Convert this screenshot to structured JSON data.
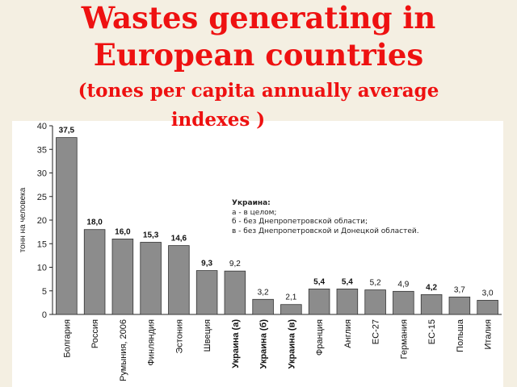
{
  "title": {
    "line1": "Wastes generating in",
    "line2": "European   countries",
    "line3": "(tones per capita annually  average",
    "line4": "indexes )"
  },
  "legend": {
    "title": "Украина:",
    "items": [
      "а - в целом;",
      "б - без Днепропетровской области;",
      "в - без Днепропетровской и Донецкой областей."
    ]
  },
  "colors": {
    "bar": "#8c8c8c",
    "title": "#ee1111",
    "panel": "#ffffff",
    "background": "#f4efe2"
  },
  "chart_data": {
    "type": "bar",
    "title": "",
    "xlabel": "",
    "ylabel": "тонн на человека",
    "ylim": [
      0,
      40
    ],
    "yticks": [
      "0",
      "5",
      "10",
      "15",
      "20",
      "25",
      "30",
      "35",
      "40"
    ],
    "grid": false,
    "categories": [
      "Болгария",
      "Россия",
      "Румыния, 2006",
      "Финляндия",
      "Эстония",
      "Швеция",
      "Украина (а)",
      "Украина (б)",
      "Украина (в)",
      "Франция",
      "Англия",
      "ЕС-27",
      "Германия",
      "ЕС-15",
      "Польша",
      "Италия"
    ],
    "values": [
      37.5,
      18.0,
      16.0,
      15.3,
      14.6,
      9.3,
      9.2,
      3.2,
      2.1,
      5.4,
      5.4,
      5.2,
      4.9,
      4.2,
      3.7,
      3.0
    ],
    "data_labels": [
      "37,5",
      "18,0",
      "16,0",
      "15,3",
      "14,6",
      "9,3",
      "9,2",
      "3,2",
      "2,1",
      "5,4",
      "5,4",
      "5,2",
      "4,9",
      "4,2",
      "3,7",
      "3,0"
    ]
  }
}
